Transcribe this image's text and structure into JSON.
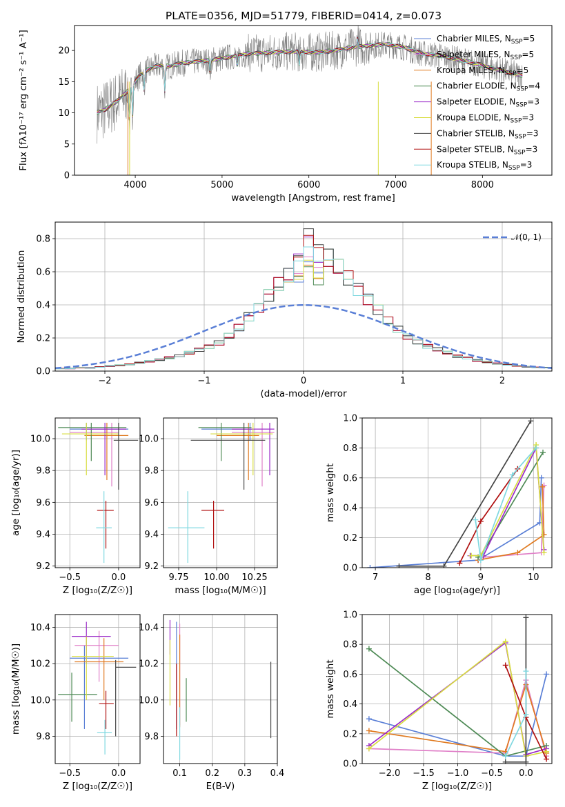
{
  "title": "PLATE=0356, MJD=51779, FIBERID=0414, z=0.073",
  "colors": {
    "Chabrier MILES": "#5a7fd6",
    "Salpeter MILES": "#e080c8",
    "Kroupa MILES": "#e07a20",
    "Chabrier ELODIE": "#4e8a55",
    "Salpeter ELODIE": "#9b2bc8",
    "Kroupa ELODIE": "#d8dd40",
    "Chabrier STELIB": "#444444",
    "Salpeter STELIB": "#b01010",
    "Kroupa STELIB": "#7fd8e0",
    "data": "#808080",
    "normal": "#5a7fd6"
  },
  "chart_data": [
    {
      "type": "line",
      "id": "spectrum",
      "title": "PLATE=0356, MJD=51779, FIBERID=0414, z=0.073",
      "xlabel": "wavelength [Angstrom, rest frame]",
      "ylabel": "Flux [fλ10⁻¹⁷ erg cm⁻² s⁻¹ A⁻¹]",
      "xlim": [
        3300,
        8800
      ],
      "ylim": [
        0,
        24
      ],
      "xticks": [
        "4000",
        "5000",
        "6000",
        "7000",
        "8000"
      ],
      "yticks": [
        "0",
        "5",
        "10",
        "15",
        "20"
      ],
      "legend_position": "upper right",
      "legend": [
        {
          "name": "Chabrier MILES",
          "nssp": "5"
        },
        {
          "name": "Salpeter MILES",
          "nssp": "5"
        },
        {
          "name": "Kroupa MILES",
          "nssp": "5"
        },
        {
          "name": "Chabrier ELODIE",
          "nssp": "4"
        },
        {
          "name": "Salpeter ELODIE",
          "nssp": "3"
        },
        {
          "name": "Kroupa ELODIE",
          "nssp": "3"
        },
        {
          "name": "Chabrier STELIB",
          "nssp": "3"
        },
        {
          "name": "Salpeter STELIB",
          "nssp": "3"
        },
        {
          "name": "Kroupa STELIB",
          "nssp": "3"
        }
      ],
      "continuum": [
        [
          3550,
          10
        ],
        [
          3650,
          10.5
        ],
        [
          3800,
          12
        ],
        [
          3950,
          14
        ],
        [
          4050,
          16
        ],
        [
          4150,
          17
        ],
        [
          4250,
          17.5
        ],
        [
          4400,
          17.5
        ],
        [
          4550,
          18
        ],
        [
          4700,
          18.2
        ],
        [
          4900,
          18.5
        ],
        [
          5100,
          19
        ],
        [
          5300,
          19.5
        ],
        [
          5500,
          19.6
        ],
        [
          5700,
          19.8
        ],
        [
          5900,
          19.8
        ],
        [
          6100,
          19.7
        ],
        [
          6300,
          20
        ],
        [
          6500,
          20.5
        ],
        [
          6700,
          20.8
        ],
        [
          6900,
          21
        ],
        [
          7100,
          20.5
        ],
        [
          7300,
          19.5
        ],
        [
          7500,
          19.2
        ],
        [
          7700,
          18.6
        ],
        [
          7900,
          18
        ],
        [
          8100,
          17.2
        ],
        [
          8300,
          16.5
        ],
        [
          8450,
          16
        ]
      ]
    },
    {
      "type": "line",
      "id": "residuals",
      "xlabel": "(data-model)/error",
      "ylabel": "Normed distribution",
      "xlim": [
        -2.5,
        2.5
      ],
      "ylim": [
        0,
        0.9
      ],
      "xticks": [
        "−2",
        "−1",
        "0",
        "1",
        "2"
      ],
      "yticks": [
        "0.0",
        "0.2",
        "0.4",
        "0.6",
        "0.8"
      ],
      "legend": [
        "𝒩(0, 1)"
      ],
      "bin_edges_start": -2.5,
      "bin_width": 0.1,
      "histogram_base": [
        0.015,
        0.015,
        0.02,
        0.02,
        0.025,
        0.03,
        0.035,
        0.04,
        0.05,
        0.06,
        0.07,
        0.08,
        0.09,
        0.11,
        0.13,
        0.15,
        0.17,
        0.21,
        0.26,
        0.33,
        0.39,
        0.46,
        0.52,
        0.57,
        0.62,
        0.66,
        0.7,
        0.68,
        0.62,
        0.56,
        0.5,
        0.44,
        0.37,
        0.3,
        0.25,
        0.21,
        0.18,
        0.15,
        0.13,
        0.11,
        0.09,
        0.08,
        0.065,
        0.055,
        0.045,
        0.038,
        0.032,
        0.027,
        0.022,
        0.02
      ],
      "histogram_peaks": [
        0.66,
        0.69,
        0.64,
        0.63,
        0.81,
        0.67,
        0.86,
        0.82,
        0.75
      ]
    },
    {
      "type": "scatter",
      "id": "age_vs_Z",
      "xlabel": "Z [log₁₀(Z/Z☉)]",
      "ylabel": "age  [log₁₀(age/yr)]",
      "xlim": [
        -0.65,
        0.22
      ],
      "ylim": [
        9.19,
        10.13
      ],
      "xticks": [
        "−0.5",
        "0.0"
      ],
      "yticks": [
        "9.2",
        "9.4",
        "9.6",
        "9.8",
        "10.0"
      ],
      "points": [
        {
          "x": -0.33,
          "y": 10.06,
          "ex": [
            -0.5,
            0.1
          ],
          "ey": [
            9.99,
            10.1
          ]
        },
        {
          "x": -0.07,
          "y": 10.04,
          "ex": [
            -0.5,
            0.0
          ],
          "ey": [
            9.7,
            10.1
          ]
        },
        {
          "x": -0.12,
          "y": 10.02,
          "ex": [
            -0.35,
            0.1
          ],
          "ey": [
            9.74,
            10.1
          ]
        },
        {
          "x": -0.28,
          "y": 10.07,
          "ex": [
            -0.62,
            0.08
          ],
          "ey": [
            9.86,
            10.1
          ]
        },
        {
          "x": -0.14,
          "y": 10.06,
          "ex": [
            -0.38,
            0.08
          ],
          "ey": [
            9.77,
            10.1
          ]
        },
        {
          "x": -0.33,
          "y": 10.03,
          "ex": [
            -0.58,
            0.0
          ],
          "ey": [
            9.77,
            10.1
          ]
        },
        {
          "x": 0.0,
          "y": 9.99,
          "ex": [
            -0.05,
            0.2
          ],
          "ey": [
            9.68,
            10.1
          ]
        },
        {
          "x": -0.13,
          "y": 9.55,
          "ex": [
            -0.22,
            -0.05
          ],
          "ey": [
            9.31,
            9.61
          ]
        },
        {
          "x": -0.15,
          "y": 9.44,
          "ex": [
            -0.23,
            -0.07
          ],
          "ey": [
            9.22,
            9.67
          ]
        }
      ]
    },
    {
      "type": "scatter",
      "id": "age_vs_mass",
      "xlabel": "mass [log₁₀(M/M☉)]",
      "ylabel": "",
      "xlim": [
        9.65,
        10.4
      ],
      "ylim": [
        9.19,
        10.13
      ],
      "xticks": [
        "9.75",
        "10.00",
        "10.25"
      ],
      "yticks": [
        "9.2",
        "9.4",
        "9.6",
        "9.8",
        "10.0"
      ],
      "points": [
        {
          "x": 10.22,
          "y": 10.06,
          "ex": [
            9.9,
            10.25
          ],
          "ey": [
            9.99,
            10.1
          ]
        },
        {
          "x": 10.3,
          "y": 10.04,
          "ex": [
            10.1,
            10.38
          ],
          "ey": [
            9.7,
            10.1
          ]
        },
        {
          "x": 10.21,
          "y": 10.02,
          "ex": [
            10.0,
            10.28
          ],
          "ey": [
            9.74,
            10.1
          ]
        },
        {
          "x": 10.03,
          "y": 10.07,
          "ex": [
            9.88,
            10.23
          ],
          "ey": [
            9.86,
            10.1
          ]
        },
        {
          "x": 10.35,
          "y": 10.06,
          "ex": [
            10.1,
            10.38
          ],
          "ey": [
            9.77,
            10.1
          ]
        },
        {
          "x": 10.24,
          "y": 10.03,
          "ex": [
            9.96,
            10.37
          ],
          "ey": [
            9.77,
            10.1
          ]
        },
        {
          "x": 10.18,
          "y": 9.99,
          "ex": [
            9.83,
            10.32
          ],
          "ey": [
            9.68,
            10.1
          ]
        },
        {
          "x": 9.98,
          "y": 9.55,
          "ex": [
            9.9,
            10.05
          ],
          "ey": [
            9.31,
            9.61
          ]
        },
        {
          "x": 9.81,
          "y": 9.44,
          "ex": [
            9.68,
            9.92
          ],
          "ey": [
            9.22,
            9.67
          ]
        }
      ]
    },
    {
      "type": "line",
      "id": "weight_vs_age",
      "xlabel": "age  [log₁₀(age/yr)]",
      "ylabel": "mass weight",
      "xlim": [
        6.75,
        10.35
      ],
      "ylim": [
        0,
        1.0
      ],
      "xticks": [
        "7",
        "8",
        "9",
        "10"
      ],
      "yticks": [
        "0.0",
        "0.2",
        "0.4",
        "0.6",
        "0.8",
        "1.0"
      ],
      "series": [
        {
          "x": [
            6.9,
            8.95,
            10.12,
            10.15
          ],
          "y": [
            0.0,
            0.05,
            0.3,
            0.6
          ]
        },
        {
          "x": [
            8.95,
            9.05,
            10.15,
            10.2
          ],
          "y": [
            0.05,
            0.07,
            0.1,
            0.55
          ]
        },
        {
          "x": [
            8.95,
            9.7,
            10.2,
            10.17
          ],
          "y": [
            0.05,
            0.1,
            0.22,
            0.54
          ]
        },
        {
          "x": [
            8.95,
            9.0,
            10.18
          ],
          "y": [
            0.07,
            0.08,
            0.77
          ]
        },
        {
          "x": [
            8.8,
            9.05,
            10.05,
            10.2
          ],
          "y": [
            0.08,
            0.08,
            0.8,
            0.12
          ]
        },
        {
          "x": [
            8.82,
            9.0,
            10.05,
            10.2
          ],
          "y": [
            0.08,
            0.08,
            0.82,
            0.1
          ]
        },
        {
          "x": [
            7.45,
            8.3,
            9.95
          ],
          "y": [
            0.01,
            0.01,
            0.98
          ]
        },
        {
          "x": [
            8.6,
            9.0,
            9.7
          ],
          "y": [
            0.03,
            0.31,
            0.66
          ]
        },
        {
          "x": [
            8.9,
            9.0,
            9.6,
            10.05
          ],
          "y": [
            0.32,
            0.05,
            0.62,
            0.8
          ]
        }
      ]
    },
    {
      "type": "scatter",
      "id": "mass_vs_Z",
      "xlabel": "Z [log₁₀(Z/Z☉)]",
      "ylabel": "mass [log₁₀(M/M☉)]",
      "xlim": [
        -0.65,
        0.22
      ],
      "ylim": [
        9.65,
        10.47
      ],
      "xticks": [
        "−0.5",
        "0.0"
      ],
      "yticks": [
        "9.8",
        "10.0",
        "10.2",
        "10.4"
      ],
      "points": [
        {
          "x": -0.35,
          "y": 10.23,
          "ex": [
            -0.5,
            0.1
          ],
          "ey": [
            9.84,
            10.3
          ]
        },
        {
          "x": -0.2,
          "y": 10.3,
          "ex": [
            -0.45,
            0.0
          ],
          "ey": [
            10.1,
            10.38
          ]
        },
        {
          "x": -0.15,
          "y": 10.21,
          "ex": [
            -0.45,
            0.05
          ],
          "ey": [
            10.0,
            10.34
          ]
        },
        {
          "x": -0.48,
          "y": 10.03,
          "ex": [
            -0.62,
            -0.22
          ],
          "ey": [
            9.88,
            10.15
          ]
        },
        {
          "x": -0.33,
          "y": 10.35,
          "ex": [
            -0.48,
            -0.08
          ],
          "ey": [
            10.2,
            10.43
          ]
        },
        {
          "x": -0.33,
          "y": 10.24,
          "ex": [
            -0.48,
            -0.05
          ],
          "ey": [
            10.0,
            10.35
          ]
        },
        {
          "x": -0.03,
          "y": 10.18,
          "ex": [
            -0.03,
            0.18
          ],
          "ey": [
            9.8,
            10.22
          ]
        },
        {
          "x": -0.13,
          "y": 9.98,
          "ex": [
            -0.2,
            -0.05
          ],
          "ey": [
            9.84,
            10.05
          ]
        },
        {
          "x": -0.14,
          "y": 9.82,
          "ex": [
            -0.22,
            -0.07
          ],
          "ey": [
            9.7,
            9.89
          ]
        }
      ]
    },
    {
      "type": "scatter",
      "id": "mass_vs_ebv",
      "xlabel": "E(B-V)",
      "ylabel": "",
      "xlim": [
        0.05,
        0.4
      ],
      "ylim": [
        9.65,
        10.47
      ],
      "xticks": [
        "0.1",
        "0.2",
        "0.3",
        "0.4"
      ],
      "yticks": [
        "9.8",
        "10.0",
        "10.2",
        "10.4"
      ],
      "points": [
        {
          "x": 0.09,
          "y": 10.22,
          "ey": [
            9.84,
            10.43
          ]
        },
        {
          "x": 0.1,
          "y": 10.3,
          "ey": [
            9.86,
            10.42
          ]
        },
        {
          "x": 0.1,
          "y": 10.21,
          "ey": [
            9.85,
            10.36
          ]
        },
        {
          "x": 0.12,
          "y": 10.03,
          "ey": [
            9.88,
            10.12
          ]
        },
        {
          "x": 0.07,
          "y": 10.35,
          "ey": [
            10.25,
            10.44
          ]
        },
        {
          "x": 0.07,
          "y": 10.24,
          "ey": [
            9.97,
            10.33
          ]
        },
        {
          "x": 0.38,
          "y": 10.18,
          "ey": [
            9.79,
            10.21
          ]
        },
        {
          "x": 0.09,
          "y": 9.98,
          "ey": [
            9.8,
            10.2
          ]
        },
        {
          "x": 0.1,
          "y": 9.82,
          "ey": [
            9.67,
            9.96
          ]
        }
      ]
    },
    {
      "type": "line",
      "id": "weight_vs_Z",
      "xlabel": "Z [log₁₀(Z/Z☉)]",
      "ylabel": "mass weight",
      "xlim": [
        -2.4,
        0.38
      ],
      "ylim": [
        0,
        1.0
      ],
      "xticks": [
        "−2.0",
        "−1.5",
        "−1.0",
        "−0.5",
        "0.0"
      ],
      "yticks": [
        "0.0",
        "0.2",
        "0.4",
        "0.6",
        "0.8",
        "1.0"
      ],
      "series": [
        {
          "x": [
            -2.3,
            -0.3,
            0.0,
            0.3
          ],
          "y": [
            0.3,
            0.05,
            0.05,
            0.6
          ]
        },
        {
          "x": [
            -2.3,
            -0.3,
            0.0,
            0.3
          ],
          "y": [
            0.1,
            0.07,
            0.56,
            0.05
          ]
        },
        {
          "x": [
            -2.3,
            -0.3,
            0.0,
            0.3
          ],
          "y": [
            0.22,
            0.08,
            0.53,
            0.07
          ]
        },
        {
          "x": [
            -2.3,
            -0.3,
            0.3
          ],
          "y": [
            0.77,
            0.05,
            0.12
          ]
        },
        {
          "x": [
            -2.3,
            -0.3,
            0.0,
            0.3
          ],
          "y": [
            0.12,
            0.81,
            0.06,
            0.1
          ]
        },
        {
          "x": [
            -2.3,
            -0.3,
            0.0,
            0.3
          ],
          "y": [
            0.1,
            0.82,
            0.05,
            0.08
          ]
        },
        {
          "x": [
            -0.3,
            0.0,
            0.0
          ],
          "y": [
            0.01,
            0.01,
            0.98
          ]
        },
        {
          "x": [
            -0.3,
            0.0,
            0.3
          ],
          "y": [
            0.66,
            0.31,
            0.03
          ]
        },
        {
          "x": [
            -0.3,
            0.0,
            0.0
          ],
          "y": [
            0.05,
            0.33,
            0.62
          ]
        }
      ]
    }
  ]
}
